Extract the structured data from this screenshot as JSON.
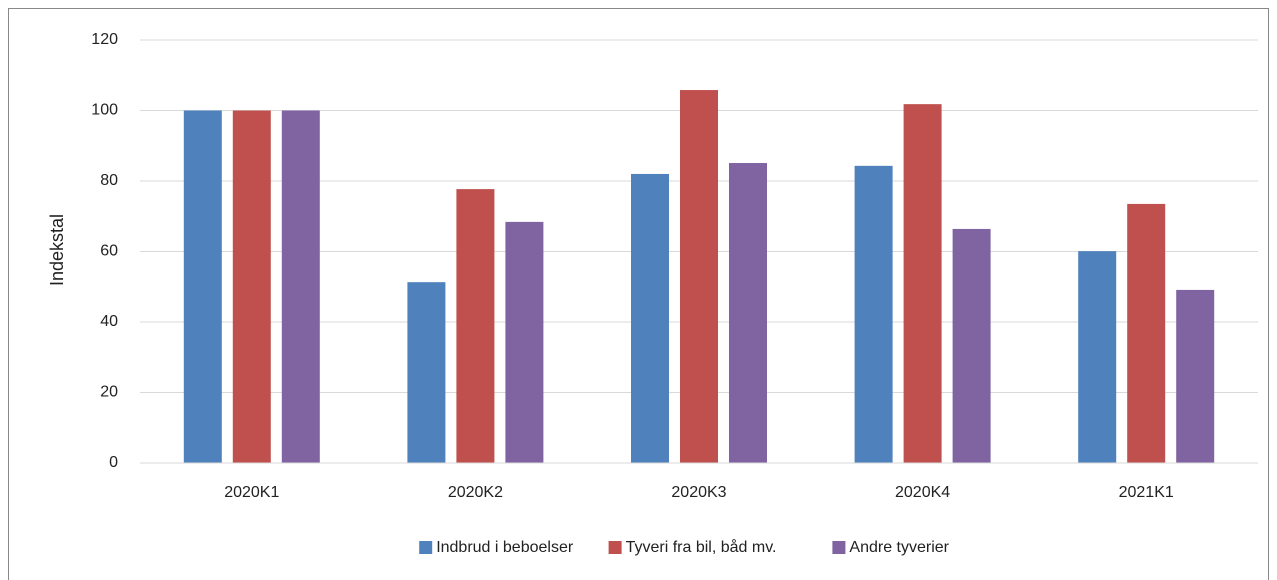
{
  "chart_data": {
    "type": "bar",
    "y_label": "Indekstal",
    "categories": [
      "2020K1",
      "2020K2",
      "2020K3",
      "2020K4",
      "2021K1"
    ],
    "series": [
      {
        "name": "Indbrud i beboelser",
        "color": "#4f81bd",
        "values": [
          100,
          51.3,
          82,
          84.3,
          60.1
        ]
      },
      {
        "name": "Tyveri fra bil, båd mv.",
        "color": "#c0504d",
        "values": [
          100,
          77.7,
          105.8,
          101.8,
          73.5
        ]
      },
      {
        "name": "Andre tyverier",
        "color": "#8064a2",
        "values": [
          100,
          68.4,
          85.1,
          66.4,
          49.1
        ]
      }
    ],
    "ylim": [
      0,
      120
    ],
    "yticks": [
      0,
      20,
      40,
      60,
      80,
      100,
      120
    ],
    "grid": true,
    "legend": "bottom"
  }
}
